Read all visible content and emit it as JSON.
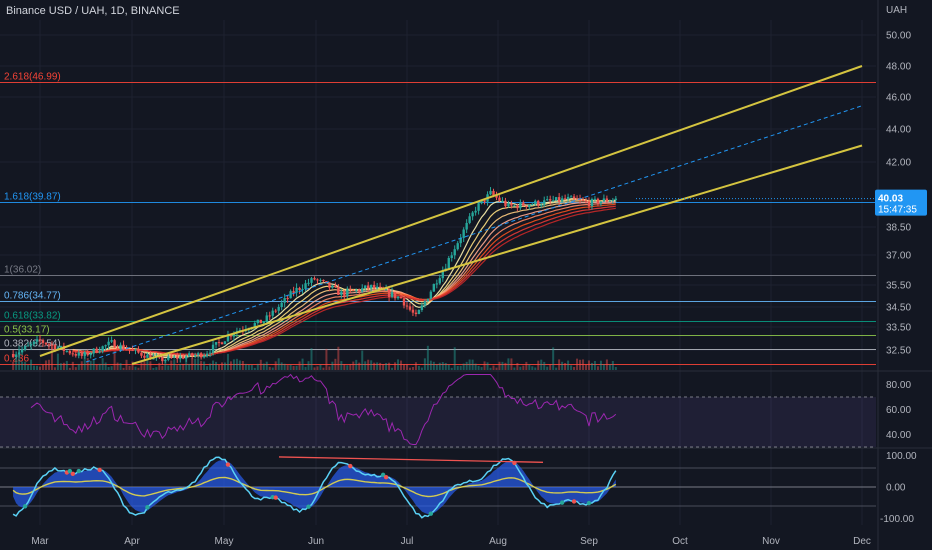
{
  "header": {
    "title": "Binance USD / UAH, 1D, BINANCE",
    "currency": "UAH"
  },
  "price_badge": {
    "price": "40.03",
    "countdown": "15:47:35",
    "color": "#2196f3"
  },
  "colors": {
    "background": "#131722",
    "up": "#26a69a",
    "down": "#ef5350",
    "channel": "#d4c440",
    "rsi_line": "#9c27b0",
    "osc_fast": "#5ad1f5",
    "osc_slow": "#2962ff",
    "osc_signal": "#ffeb3b"
  },
  "chart_data": [
    {
      "type": "candlestick",
      "pane": "price",
      "y_ticks": [
        "50.00",
        "48.00",
        "46.00",
        "44.00",
        "42.00",
        "38.50",
        "37.00",
        "35.50",
        "34.50",
        "33.50",
        "32.50"
      ],
      "x_ticks": [
        "Mar",
        "Apr",
        "May",
        "Jun",
        "Jul",
        "Aug",
        "Sep",
        "Oct",
        "Nov",
        "Dec"
      ],
      "ylim": [
        31.6,
        51.5
      ],
      "log_scale": true,
      "last_price": 40.03,
      "fib_levels": [
        {
          "label": "2.618(46.99)",
          "value": 46.99,
          "color": "#f44336"
        },
        {
          "label": "1.618(39.87)",
          "value": 39.87,
          "color": "#2196f3"
        },
        {
          "label": "1(36.02)",
          "value": 36.02,
          "color": "#787b86"
        },
        {
          "label": "0.786(34.77)",
          "value": 34.77,
          "color": "#64b5f6"
        },
        {
          "label": "0.618(33.82)",
          "value": 33.82,
          "color": "#089981"
        },
        {
          "label": "0.5(33.17)",
          "value": 33.17,
          "color": "#8bc34a"
        },
        {
          "label": "0.382(32.54)",
          "value": 32.54,
          "color": "#b2b5be"
        },
        {
          "label": "0.236",
          "value": 31.8,
          "color": "#f44336"
        }
      ],
      "trend_channel": {
        "upper": [
          {
            "date": "Mar",
            "value": 32.2
          },
          {
            "date": "Dec",
            "value": 48.0
          }
        ],
        "lower": [
          {
            "date": "Apr",
            "value": 31.8
          },
          {
            "date": "Dec",
            "value": 43.0
          }
        ]
      },
      "price_path": [
        {
          "date": "Feb-20",
          "value": 32.3
        },
        {
          "date": "Mar-01",
          "value": 32.9
        },
        {
          "date": "Mar-15",
          "value": 32.2
        },
        {
          "date": "Mar-25",
          "value": 32.8
        },
        {
          "date": "Apr-10",
          "value": 32.0
        },
        {
          "date": "Apr-25",
          "value": 32.3
        },
        {
          "date": "May-05",
          "value": 33.3
        },
        {
          "date": "May-15",
          "value": 33.8
        },
        {
          "date": "May-25",
          "value": 35.2
        },
        {
          "date": "Jun-01",
          "value": 35.8
        },
        {
          "date": "Jun-10",
          "value": 35.1
        },
        {
          "date": "Jun-20",
          "value": 35.4
        },
        {
          "date": "Jun-30",
          "value": 34.9
        },
        {
          "date": "Jul-05",
          "value": 34.0
        },
        {
          "date": "Jul-15",
          "value": 36.5
        },
        {
          "date": "Jul-25",
          "value": 39.5
        },
        {
          "date": "Jul-30",
          "value": 40.3
        },
        {
          "date": "Aug-05",
          "value": 39.6
        },
        {
          "date": "Aug-15",
          "value": 39.8
        },
        {
          "date": "Aug-25",
          "value": 40.0
        },
        {
          "date": "Sep-01",
          "value": 39.8
        },
        {
          "date": "Sep-10",
          "value": 40.03
        }
      ]
    },
    {
      "type": "line",
      "pane": "rsi",
      "y_ticks": [
        "80.00",
        "60.00",
        "40.00"
      ],
      "ylim": [
        30,
        90
      ],
      "bands": [
        70,
        30
      ]
    },
    {
      "type": "area",
      "pane": "oscillator",
      "y_ticks": [
        "100.00",
        "0.00",
        "-100.00"
      ],
      "ylim": [
        -120,
        120
      ]
    }
  ]
}
